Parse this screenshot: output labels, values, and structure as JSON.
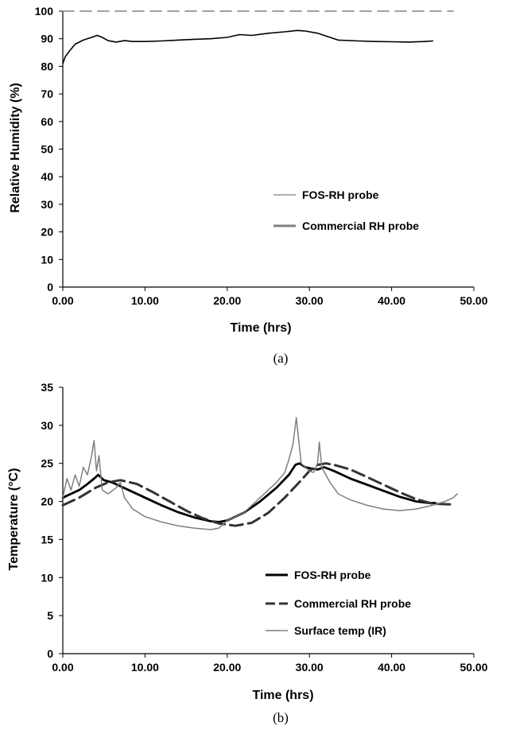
{
  "chart_data": [
    {
      "type": "line",
      "caption": "(a)",
      "xlabel": "Time (hrs)",
      "ylabel": "Relative Humidity (%)",
      "xlim": [
        0,
        50
      ],
      "ylim": [
        0,
        100
      ],
      "x_ticks": [
        "0.00",
        "10.00",
        "20.00",
        "30.00",
        "40.00",
        "50.00"
      ],
      "y_ticks": [
        "0",
        "10",
        "20",
        "30",
        "40",
        "50",
        "60",
        "70",
        "80",
        "90",
        "100"
      ],
      "legend_position": "center-right",
      "series": [
        {
          "name": "FOS-RH probe",
          "color": "#000000",
          "style": "solid",
          "x": [
            0,
            0.3,
            0.8,
            1.5,
            2.5,
            3.5,
            4.2,
            4.8,
            5.5,
            6.5,
            7.5,
            8.5,
            10,
            12,
            14,
            16,
            18,
            20,
            21.5,
            23,
            25,
            27,
            28.5,
            29.5,
            31,
            32,
            33.5,
            36,
            38,
            40,
            42,
            44,
            45
          ],
          "y": [
            81,
            83.5,
            85.5,
            88,
            89.5,
            90.5,
            91.2,
            90.5,
            89.3,
            88.8,
            89.3,
            89,
            89,
            89.2,
            89.5,
            89.8,
            90,
            90.5,
            91.5,
            91.2,
            92,
            92.5,
            93,
            92.8,
            92,
            91,
            89.5,
            89.2,
            89,
            88.9,
            88.8,
            89,
            89.2
          ]
        },
        {
          "name": "Commercial RH probe",
          "color": "#808080",
          "style": "dashed",
          "x": [
            0,
            47.5
          ],
          "y": [
            100,
            100
          ]
        }
      ]
    },
    {
      "type": "line",
      "caption": "(b)",
      "xlabel": "Time (hrs)",
      "ylabel": "Temperature (°C)",
      "xlim": [
        0,
        50
      ],
      "ylim": [
        0,
        35
      ],
      "x_ticks": [
        "0.00",
        "10.00",
        "20.00",
        "30.00",
        "40.00",
        "50.00"
      ],
      "y_ticks": [
        "0",
        "5",
        "10",
        "15",
        "20",
        "25",
        "30",
        "35"
      ],
      "legend_position": "bottom-right",
      "series": [
        {
          "name": "FOS-RH probe",
          "color": "#000000",
          "style": "solid",
          "x": [
            0,
            1,
            2,
            3,
            3.8,
            4.3,
            5,
            6,
            8,
            10,
            12,
            14,
            16,
            18,
            19,
            20,
            22,
            24,
            26,
            27.5,
            28.3,
            28.8,
            29.5,
            30.3,
            31,
            31.8,
            33,
            35,
            37,
            39,
            41,
            43,
            44.5,
            45.3
          ],
          "y": [
            20.5,
            21,
            21.5,
            22.3,
            23,
            23.5,
            22.8,
            22.5,
            21.5,
            20.5,
            19.5,
            18.6,
            17.9,
            17.4,
            17.3,
            17.5,
            18.5,
            20,
            21.8,
            23.5,
            24.8,
            25,
            24.5,
            24.3,
            24.2,
            24.5,
            24,
            23,
            22.2,
            21.4,
            20.6,
            20,
            19.8,
            19.8
          ]
        },
        {
          "name": "Commercial RH probe",
          "color": "#333333",
          "style": "dashed",
          "x": [
            0,
            2,
            4,
            5.5,
            7,
            9,
            11,
            13,
            15,
            17,
            19,
            21,
            23,
            25,
            27,
            29,
            30,
            31,
            32,
            33,
            35,
            37,
            39,
            41,
            43,
            45,
            47.5
          ],
          "y": [
            19.5,
            20.5,
            21.8,
            22.5,
            22.8,
            22.3,
            21.2,
            20,
            18.8,
            17.8,
            17.1,
            16.8,
            17.2,
            18.5,
            20.5,
            22.8,
            24,
            24.8,
            25,
            24.8,
            24.2,
            23.2,
            22.2,
            21.2,
            20.3,
            19.7,
            19.6
          ]
        },
        {
          "name": "Surface temp (IR)",
          "color": "#7f7f7f",
          "style": "solid",
          "x": [
            0,
            0.5,
            1,
            1.5,
            2,
            2.5,
            3,
            3.5,
            3.8,
            4.1,
            4.4,
            4.8,
            5.5,
            6.5,
            7,
            7.5,
            8.5,
            10,
            12,
            14,
            16,
            18,
            19,
            20,
            21,
            22,
            23,
            24,
            25,
            26,
            27,
            27.5,
            28,
            28.4,
            28.6,
            29,
            29.5,
            30,
            30.5,
            31,
            31.2,
            31.5,
            32,
            32.5,
            33.5,
            35,
            37,
            39,
            41,
            43,
            45,
            46.5,
            47.5,
            48
          ],
          "y": [
            20.5,
            23,
            21.5,
            23.5,
            22,
            24.5,
            23.5,
            26,
            28,
            24,
            26,
            21.5,
            21,
            21.8,
            22.5,
            20.5,
            19,
            18,
            17.3,
            16.8,
            16.5,
            16.3,
            16.5,
            17.5,
            18,
            18.5,
            19.5,
            20.5,
            21.5,
            22.5,
            23.8,
            25.5,
            27.5,
            31,
            29,
            25,
            24.5,
            24,
            23.8,
            25,
            27.8,
            24.5,
            23.5,
            22.5,
            21,
            20.2,
            19.5,
            19,
            18.8,
            19,
            19.5,
            20,
            20.5,
            21
          ]
        }
      ]
    }
  ]
}
